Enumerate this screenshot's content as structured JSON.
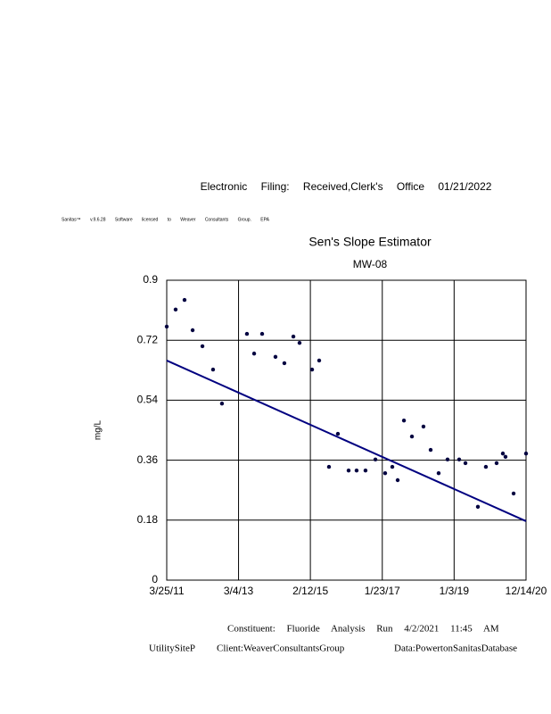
{
  "header": {
    "filing": "Electronic Filing: Received,Clerk's Office 01/21/2022",
    "license": "Sanitas™ v.9.6.28 Software licensed to Weaver Consultants Group. EPA"
  },
  "chart_data": {
    "type": "scatter",
    "title": "Sen's Slope Estimator",
    "subtitle": "MW-08",
    "y_label": "mg/L",
    "x": [
      "2011-03-25",
      "2011-06-21",
      "2011-09-17",
      "2011-12-06",
      "2012-03-12",
      "2012-06-25",
      "2012-09-21",
      "2013-05-26",
      "2013-08-05",
      "2013-10-23",
      "2014-03-04",
      "2014-05-31",
      "2014-08-28",
      "2014-10-28",
      "2015-03-01",
      "2015-05-10",
      "2015-08-15",
      "2015-11-11",
      "2016-02-25",
      "2016-05-14",
      "2016-08-10",
      "2016-11-16",
      "2017-02-20",
      "2017-05-02",
      "2017-06-24",
      "2017-08-25",
      "2017-11-12",
      "2018-03-06",
      "2018-05-16",
      "2018-08-03",
      "2018-10-30",
      "2019-02-22",
      "2019-04-25",
      "2019-08-26",
      "2019-11-13",
      "2020-02-27",
      "2020-04-29",
      "2020-05-25",
      "2020-08-13",
      "2020-12-14"
    ],
    "values": [
      0.761,
      0.812,
      0.841,
      0.75,
      0.702,
      0.632,
      0.53,
      0.739,
      0.68,
      0.739,
      0.67,
      0.651,
      0.731,
      0.712,
      0.632,
      0.659,
      0.34,
      0.439,
      0.329,
      0.329,
      0.329,
      0.362,
      0.321,
      0.34,
      0.3,
      0.479,
      0.431,
      0.461,
      0.391,
      0.321,
      0.362,
      0.362,
      0.351,
      0.22,
      0.34,
      0.351,
      0.38,
      0.37,
      0.26,
      0.38
    ],
    "color": "#000040",
    "trend": {
      "x": [
        "2011-03-25",
        "2020-12-14"
      ],
      "values": [
        0.659,
        0.177
      ],
      "color": "#000080"
    },
    "xlim": [
      "2011-03-25",
      "2020-12-14"
    ],
    "xticks": [
      {
        "value": "2011-03-25",
        "label": "3/25/11"
      },
      {
        "value": "2013-03-04",
        "label": "3/4/13"
      },
      {
        "value": "2015-02-12",
        "label": "2/12/15"
      },
      {
        "value": "2017-01-23",
        "label": "1/23/17"
      },
      {
        "value": "2019-01-03",
        "label": "1/3/19"
      },
      {
        "value": "2020-12-14",
        "label": "12/14/20"
      }
    ],
    "ylim": [
      0,
      0.9
    ],
    "yticks": [
      0,
      0.18,
      0.36,
      0.54,
      0.72,
      0.9
    ],
    "grid": true
  },
  "footer": {
    "run": "Constituent: Fluoride Analysis Run 4/2/2021 11:45 AM",
    "site": "UtilitySiteP",
    "client": "Client:WeaverConsultantsGroup",
    "database": "Data:PowertonSanitasDatabase"
  }
}
